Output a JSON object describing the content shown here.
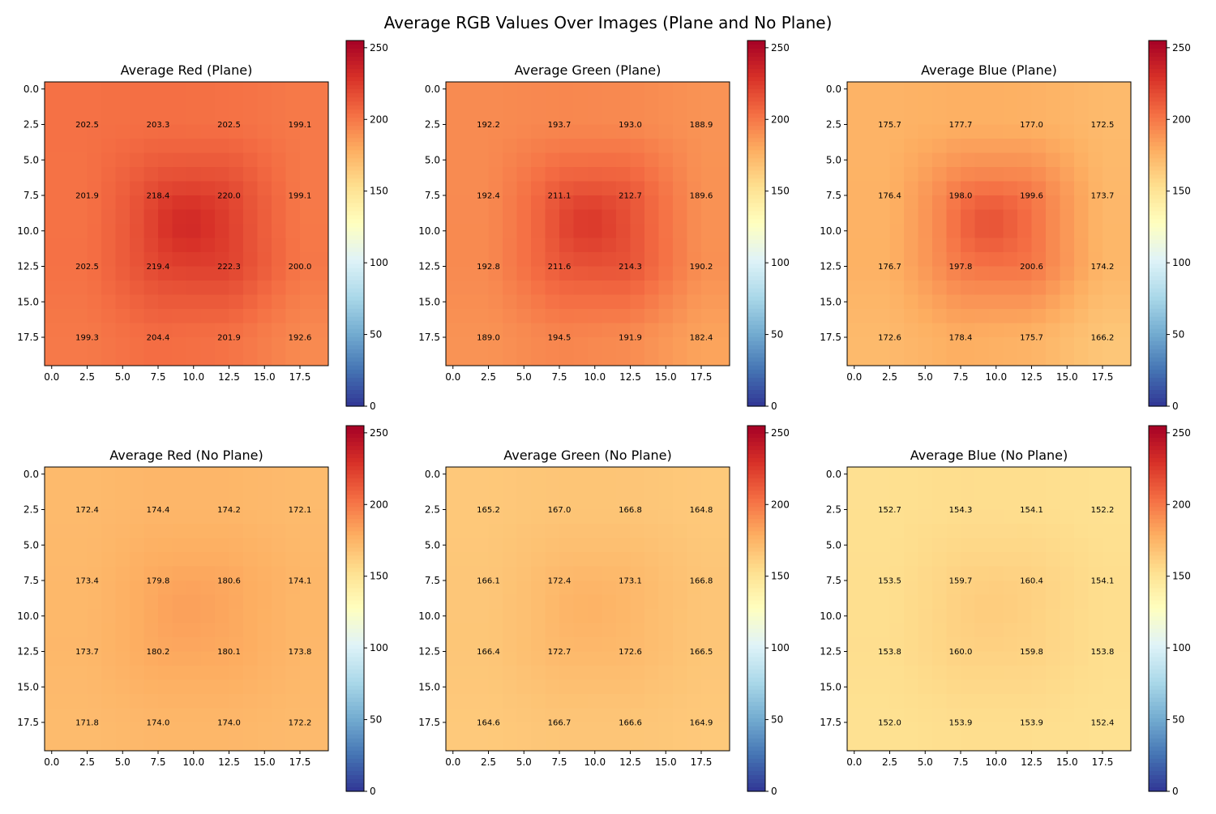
{
  "title": "Average RGB Values Over Images (Plane and No Plane)",
  "colormap": [
    "#313695",
    "#4575b4",
    "#74add1",
    "#abd9e9",
    "#e0f3f8",
    "#ffffbf",
    "#fee090",
    "#fdae61",
    "#f46d43",
    "#d73027",
    "#a50026"
  ],
  "chart_data": [
    {
      "type": "heatmap",
      "title": "Average Red (Plane)",
      "x_ticks": [
        "0.0",
        "2.5",
        "5.0",
        "7.5",
        "10.0",
        "12.5",
        "15.0",
        "17.5"
      ],
      "y_ticks": [
        "0.0",
        "2.5",
        "5.0",
        "7.5",
        "10.0",
        "12.5",
        "15.0",
        "17.5"
      ],
      "xlim": [
        -0.5,
        19.5
      ],
      "ylim": [
        19.5,
        -0.5
      ],
      "clim": [
        0,
        255
      ],
      "colorbar_ticks": [
        "0",
        "50",
        "100",
        "150",
        "200",
        "250"
      ],
      "center_peak": 233,
      "annotation_positions": [
        2.5,
        7.5,
        12.5,
        17.5
      ],
      "annotations": [
        [
          "202.5",
          "203.3",
          "202.5",
          "199.1"
        ],
        [
          "201.9",
          "218.4",
          "220.0",
          "199.1"
        ],
        [
          "202.5",
          "219.4",
          "222.3",
          "200.0"
        ],
        [
          "199.3",
          "204.4",
          "201.9",
          "192.6"
        ]
      ]
    },
    {
      "type": "heatmap",
      "title": "Average Green (Plane)",
      "x_ticks": [
        "0.0",
        "2.5",
        "5.0",
        "7.5",
        "10.0",
        "12.5",
        "15.0",
        "17.5"
      ],
      "y_ticks": [
        "0.0",
        "2.5",
        "5.0",
        "7.5",
        "10.0",
        "12.5",
        "15.0",
        "17.5"
      ],
      "xlim": [
        -0.5,
        19.5
      ],
      "ylim": [
        19.5,
        -0.5
      ],
      "clim": [
        0,
        255
      ],
      "colorbar_ticks": [
        "0",
        "50",
        "100",
        "150",
        "200",
        "250"
      ],
      "center_peak": 226,
      "annotation_positions": [
        2.5,
        7.5,
        12.5,
        17.5
      ],
      "annotations": [
        [
          "192.2",
          "193.7",
          "193.0",
          "188.9"
        ],
        [
          "192.4",
          "211.1",
          "212.7",
          "189.6"
        ],
        [
          "192.8",
          "211.6",
          "214.3",
          "190.2"
        ],
        [
          "189.0",
          "194.5",
          "191.9",
          "182.4"
        ]
      ]
    },
    {
      "type": "heatmap",
      "title": "Average Blue (Plane)",
      "x_ticks": [
        "0.0",
        "2.5",
        "5.0",
        "7.5",
        "10.0",
        "12.5",
        "15.0",
        "17.5"
      ],
      "y_ticks": [
        "0.0",
        "2.5",
        "5.0",
        "7.5",
        "10.0",
        "12.5",
        "15.0",
        "17.5"
      ],
      "xlim": [
        -0.5,
        19.5
      ],
      "ylim": [
        19.5,
        -0.5
      ],
      "clim": [
        0,
        255
      ],
      "colorbar_ticks": [
        "0",
        "50",
        "100",
        "150",
        "200",
        "250"
      ],
      "center_peak": 215,
      "annotation_positions": [
        2.5,
        7.5,
        12.5,
        17.5
      ],
      "annotations": [
        [
          "175.7",
          "177.7",
          "177.0",
          "172.5"
        ],
        [
          "176.4",
          "198.0",
          "199.6",
          "173.7"
        ],
        [
          "176.7",
          "197.8",
          "200.6",
          "174.2"
        ],
        [
          "172.6",
          "178.4",
          "175.7",
          "166.2"
        ]
      ]
    },
    {
      "type": "heatmap",
      "title": "Average Red (No Plane)",
      "x_ticks": [
        "0.0",
        "2.5",
        "5.0",
        "7.5",
        "10.0",
        "12.5",
        "15.0",
        "17.5"
      ],
      "y_ticks": [
        "0.0",
        "2.5",
        "5.0",
        "7.5",
        "10.0",
        "12.5",
        "15.0",
        "17.5"
      ],
      "xlim": [
        -0.5,
        19.5
      ],
      "ylim": [
        19.5,
        -0.5
      ],
      "clim": [
        0,
        255
      ],
      "colorbar_ticks": [
        "0",
        "50",
        "100",
        "150",
        "200",
        "250"
      ],
      "center_peak": 184,
      "annotation_positions": [
        2.5,
        7.5,
        12.5,
        17.5
      ],
      "annotations": [
        [
          "172.4",
          "174.4",
          "174.2",
          "172.1"
        ],
        [
          "173.4",
          "179.8",
          "180.6",
          "174.1"
        ],
        [
          "173.7",
          "180.2",
          "180.1",
          "173.8"
        ],
        [
          "171.8",
          "174.0",
          "174.0",
          "172.2"
        ]
      ]
    },
    {
      "type": "heatmap",
      "title": "Average Green (No Plane)",
      "x_ticks": [
        "0.0",
        "2.5",
        "5.0",
        "7.5",
        "10.0",
        "12.5",
        "15.0",
        "17.5"
      ],
      "y_ticks": [
        "0.0",
        "2.5",
        "5.0",
        "7.5",
        "10.0",
        "12.5",
        "15.0",
        "17.5"
      ],
      "xlim": [
        -0.5,
        19.5
      ],
      "ylim": [
        19.5,
        -0.5
      ],
      "clim": [
        0,
        255
      ],
      "colorbar_ticks": [
        "0",
        "50",
        "100",
        "150",
        "200",
        "250"
      ],
      "center_peak": 176,
      "annotation_positions": [
        2.5,
        7.5,
        12.5,
        17.5
      ],
      "annotations": [
        [
          "165.2",
          "167.0",
          "166.8",
          "164.8"
        ],
        [
          "166.1",
          "172.4",
          "173.1",
          "166.8"
        ],
        [
          "166.4",
          "172.7",
          "172.6",
          "166.5"
        ],
        [
          "164.6",
          "166.7",
          "166.6",
          "164.9"
        ]
      ]
    },
    {
      "type": "heatmap",
      "title": "Average Blue (No Plane)",
      "x_ticks": [
        "0.0",
        "2.5",
        "5.0",
        "7.5",
        "10.0",
        "12.5",
        "15.0",
        "17.5"
      ],
      "y_ticks": [
        "0.0",
        "2.5",
        "5.0",
        "7.5",
        "10.0",
        "12.5",
        "15.0",
        "17.5"
      ],
      "xlim": [
        -0.5,
        19.5
      ],
      "ylim": [
        19.5,
        -0.5
      ],
      "clim": [
        0,
        255
      ],
      "colorbar_ticks": [
        "0",
        "50",
        "100",
        "150",
        "200",
        "250"
      ],
      "center_peak": 163,
      "annotation_positions": [
        2.5,
        7.5,
        12.5,
        17.5
      ],
      "annotations": [
        [
          "152.7",
          "154.3",
          "154.1",
          "152.2"
        ],
        [
          "153.5",
          "159.7",
          "160.4",
          "154.1"
        ],
        [
          "153.8",
          "160.0",
          "159.8",
          "153.8"
        ],
        [
          "152.0",
          "153.9",
          "153.9",
          "152.4"
        ]
      ]
    }
  ]
}
